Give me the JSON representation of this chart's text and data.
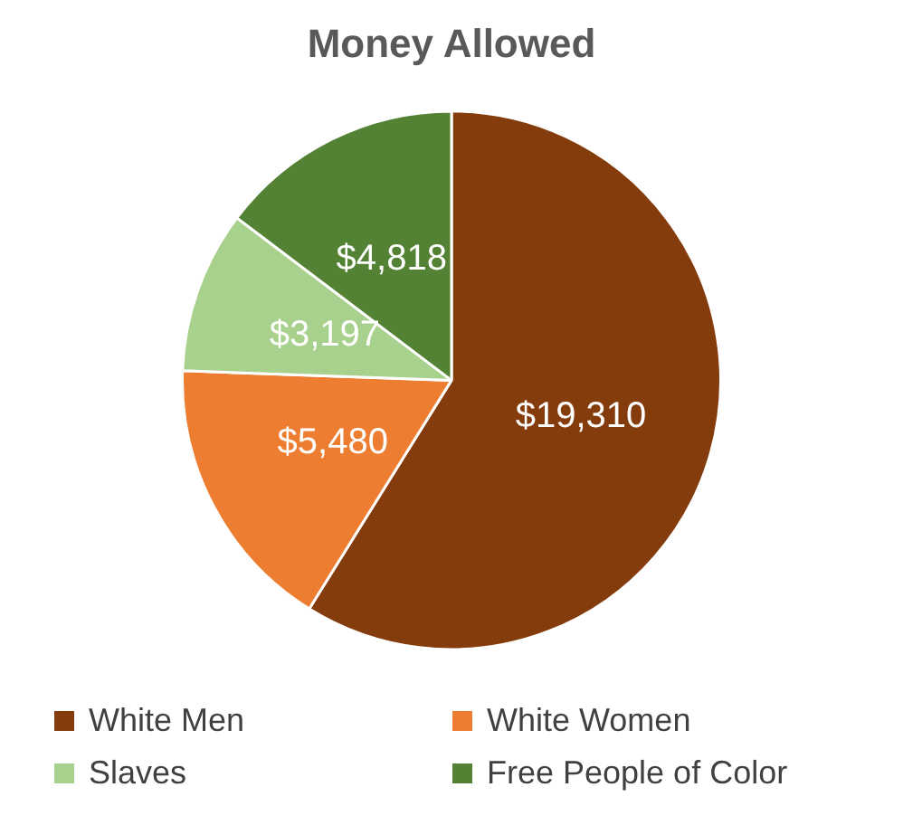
{
  "chart_data": {
    "type": "pie",
    "title": "Money Allowed",
    "categories": [
      "White Men",
      "White Women",
      "Slaves",
      "Free People of Color"
    ],
    "values": [
      19310,
      5480,
      3197,
      4818
    ],
    "colors": [
      "#843c0c",
      "#ed7d31",
      "#a9d18e",
      "#548235"
    ],
    "value_labels": [
      "$19,310",
      "$5,480",
      "$3,197",
      "$4,818"
    ],
    "legend": "bottom"
  }
}
